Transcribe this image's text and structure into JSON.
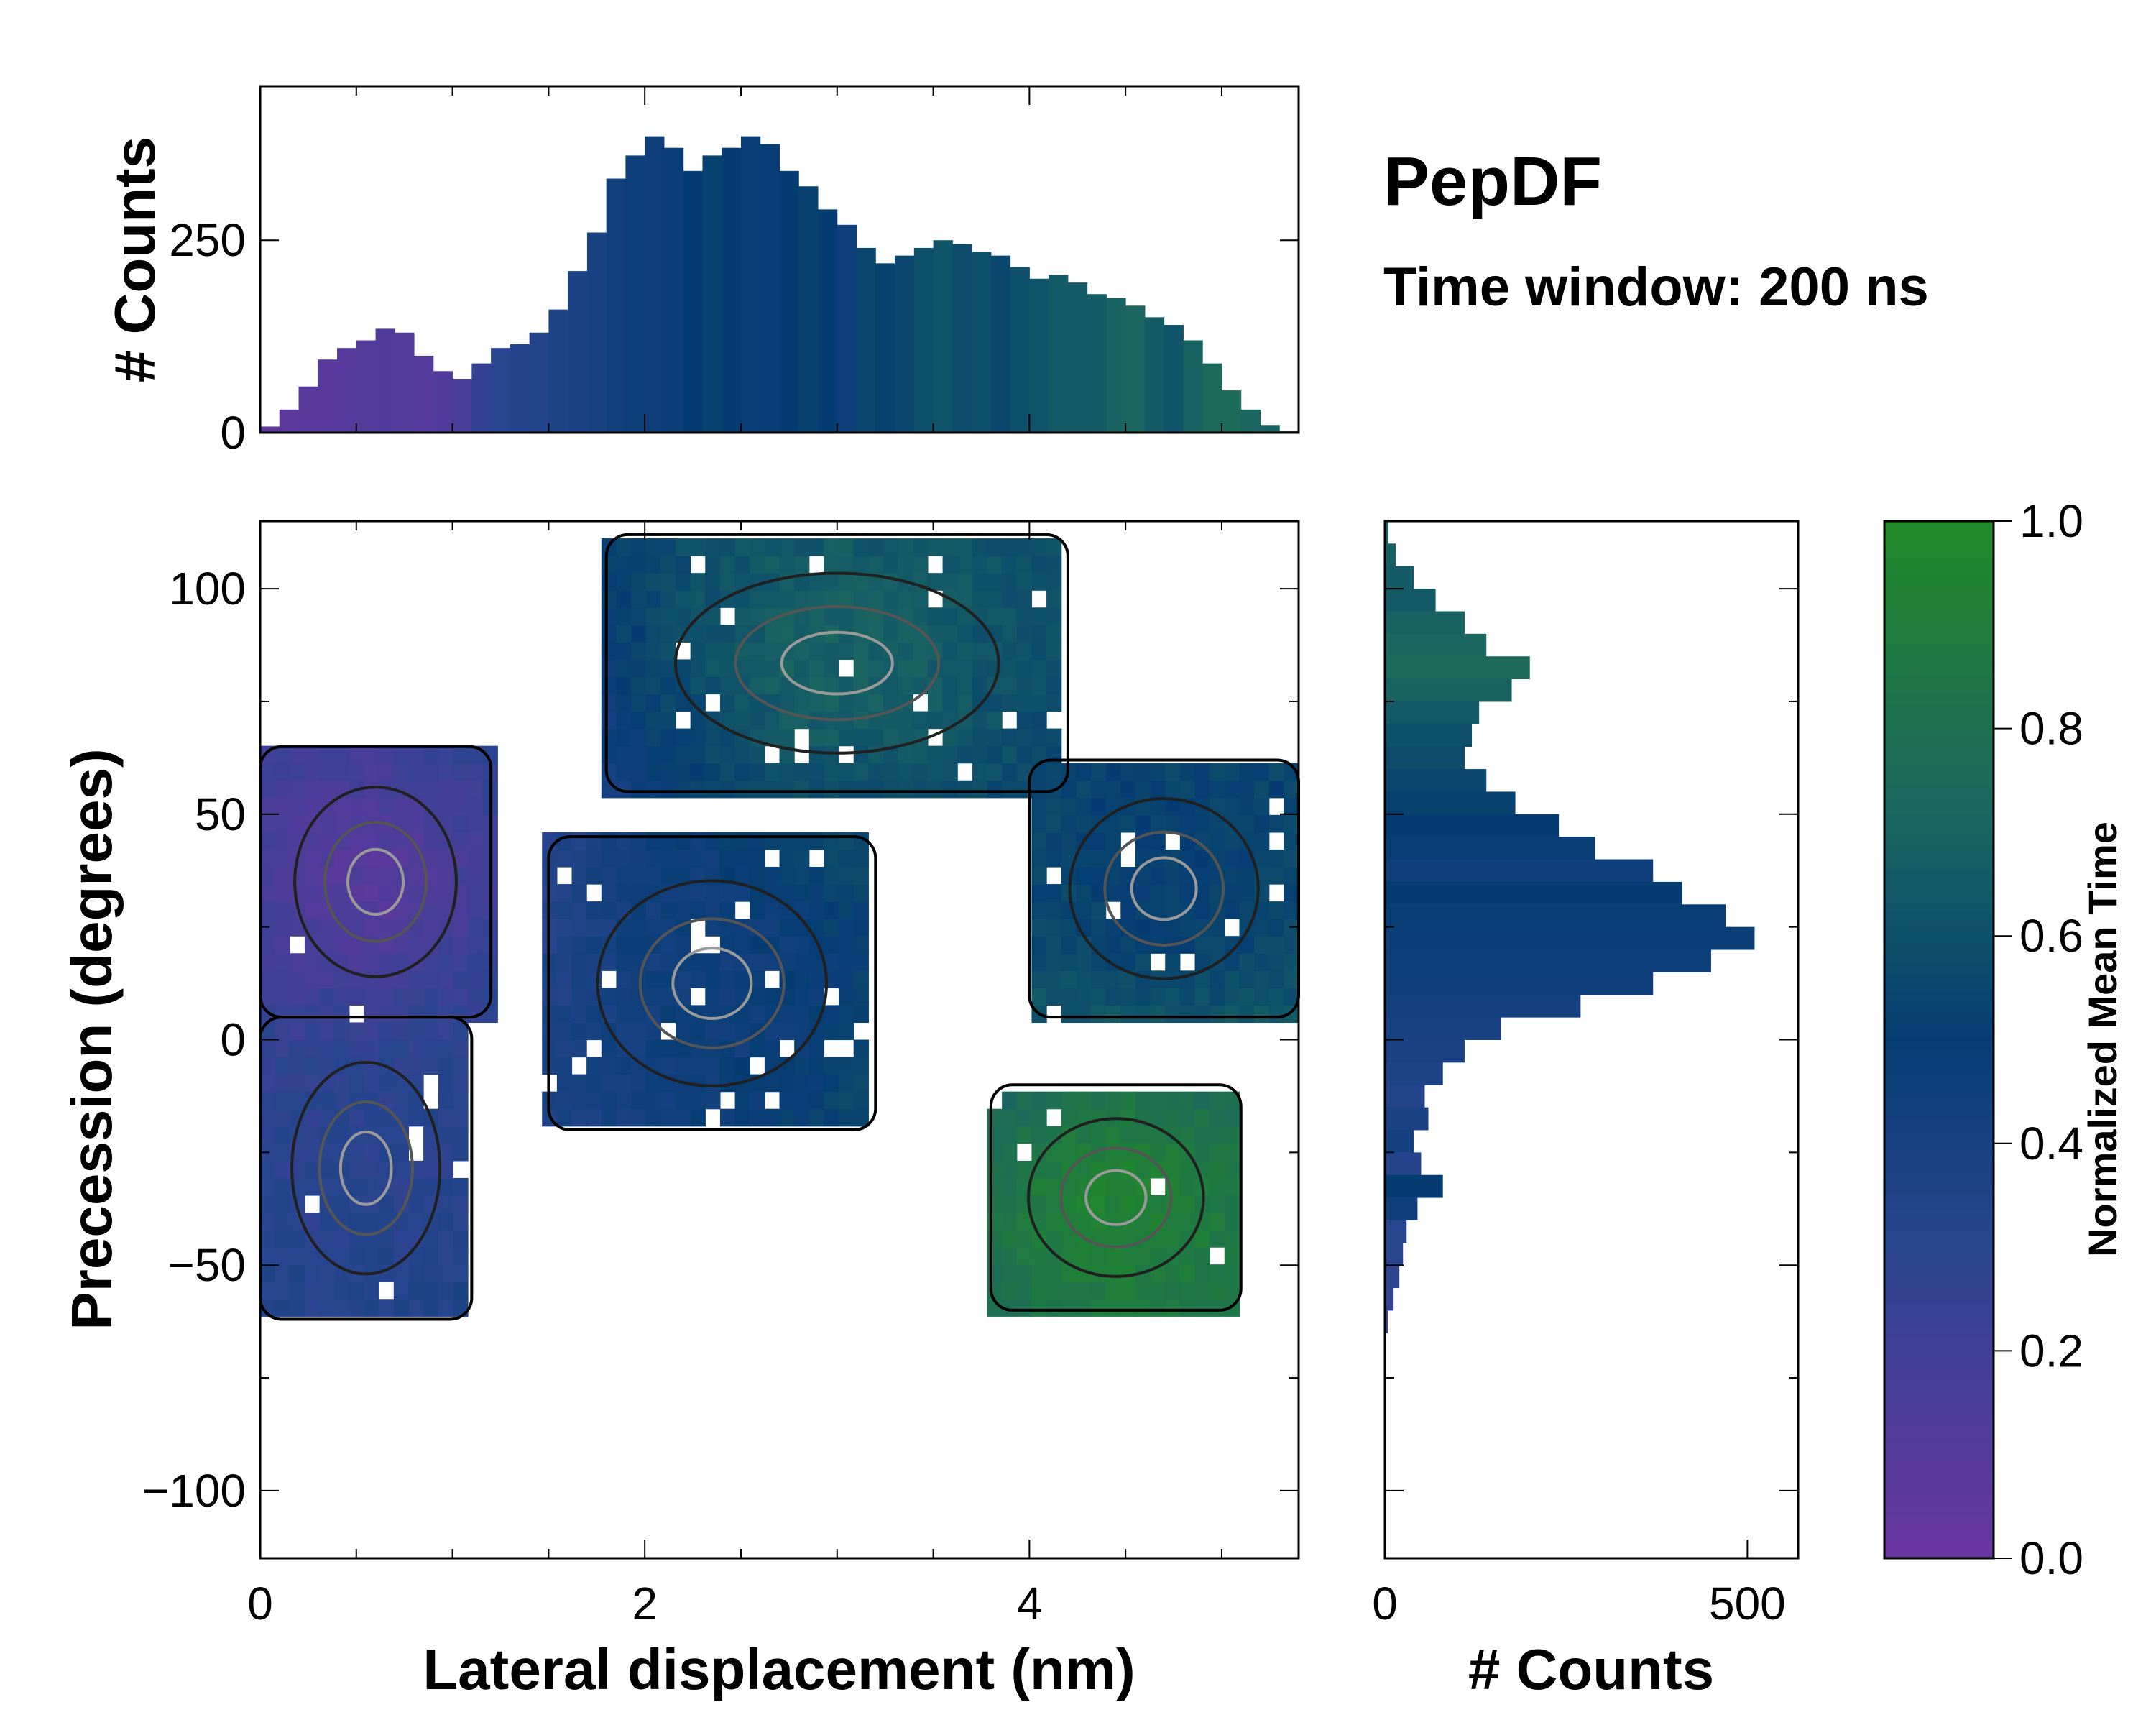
{
  "chart_data": {
    "type": "heatmap",
    "title": "PepDF",
    "subtitle": "Time window: 200 ns",
    "xlabel": "Lateral displacement (nm)",
    "ylabel": "Precession (degrees)",
    "xlim": [
      0,
      5.4
    ],
    "ylim": [
      -115,
      115
    ],
    "xticks": [
      0,
      2,
      4
    ],
    "yticks": [
      100,
      50,
      0,
      -50,
      -100
    ],
    "colorbar": {
      "label": "Normalized Mean Time",
      "range": [
        0.0,
        1.0
      ],
      "ticks": [
        "0.0",
        "0.2",
        "0.4",
        "0.6",
        "0.8",
        "1.0"
      ],
      "colors": [
        "#6a35a0",
        "#2a4590",
        "#053d72",
        "#1b6660",
        "#228a28"
      ]
    },
    "regions": [
      {
        "name": "left purple cluster",
        "x_range": [
          0.0,
          1.2
        ],
        "y_range": [
          5,
          65
        ],
        "mean_time": 0.08
      },
      {
        "name": "lower-left blue cluster",
        "x_range": [
          0.0,
          1.1
        ],
        "y_range": [
          -62,
          5
        ],
        "mean_time": 0.3
      },
      {
        "name": "central cluster",
        "x_range": [
          1.5,
          3.2
        ],
        "y_range": [
          -20,
          45
        ],
        "mean_time": 0.45
      },
      {
        "name": "upper green cluster",
        "x_range": [
          1.8,
          4.2
        ],
        "y_range": [
          55,
          112
        ],
        "mean_time": 0.7
      },
      {
        "name": "right blue cluster",
        "x_range": [
          4.0,
          5.4
        ],
        "y_range": [
          5,
          62
        ],
        "mean_time": 0.5
      },
      {
        "name": "lower-right green cluster",
        "x_range": [
          3.8,
          5.1
        ],
        "y_range": [
          -60,
          -10
        ],
        "mean_time": 0.95
      }
    ],
    "top_histogram": {
      "ylabel": "# Counts",
      "ylim": [
        0,
        450
      ],
      "yticks": [
        0,
        250
      ],
      "x": [
        0.05,
        0.15,
        0.25,
        0.35,
        0.45,
        0.55,
        0.65,
        0.75,
        0.85,
        0.95,
        1.05,
        1.15,
        1.25,
        1.35,
        1.45,
        1.55,
        1.65,
        1.75,
        1.85,
        1.95,
        2.05,
        2.15,
        2.25,
        2.35,
        2.45,
        2.55,
        2.65,
        2.75,
        2.85,
        2.95,
        3.05,
        3.15,
        3.25,
        3.35,
        3.45,
        3.55,
        3.65,
        3.75,
        3.85,
        3.95,
        4.05,
        4.15,
        4.25,
        4.35,
        4.45,
        4.55,
        4.65,
        4.75,
        4.85,
        4.95,
        5.05,
        5.15,
        5.25,
        5.35
      ],
      "counts": [
        8,
        30,
        60,
        95,
        110,
        120,
        135,
        130,
        100,
        80,
        70,
        90,
        110,
        115,
        130,
        160,
        210,
        260,
        330,
        360,
        385,
        370,
        340,
        360,
        370,
        385,
        375,
        340,
        320,
        290,
        270,
        240,
        220,
        230,
        240,
        250,
        245,
        235,
        230,
        215,
        200,
        205,
        195,
        180,
        175,
        165,
        150,
        140,
        120,
        90,
        55,
        30,
        10,
        2
      ],
      "mean_time": [
        0.05,
        0.06,
        0.08,
        0.09,
        0.1,
        0.11,
        0.12,
        0.11,
        0.1,
        0.12,
        0.16,
        0.25,
        0.3,
        0.32,
        0.34,
        0.36,
        0.38,
        0.4,
        0.44,
        0.46,
        0.45,
        0.47,
        0.5,
        0.52,
        0.5,
        0.48,
        0.49,
        0.5,
        0.52,
        0.5,
        0.45,
        0.55,
        0.52,
        0.55,
        0.6,
        0.62,
        0.58,
        0.6,
        0.55,
        0.6,
        0.62,
        0.66,
        0.65,
        0.66,
        0.7,
        0.72,
        0.66,
        0.62,
        0.7,
        0.74,
        0.75,
        0.72,
        0.7,
        0.7
      ]
    },
    "right_histogram": {
      "xlabel": "# Counts",
      "xlim": [
        0,
        570
      ],
      "xticks": [
        0,
        500
      ],
      "y": [
        112.5,
        107.5,
        102.5,
        97.5,
        92.5,
        87.5,
        82.5,
        77.5,
        72.5,
        67.5,
        62.5,
        57.5,
        52.5,
        47.5,
        42.5,
        37.5,
        32.5,
        27.5,
        22.5,
        17.5,
        12.5,
        7.5,
        2.5,
        -2.5,
        -7.5,
        -12.5,
        -17.5,
        -22.5,
        -27.5,
        -32.5,
        -37.5,
        -42.5,
        -47.5,
        -52.5,
        -57.5,
        -62.5
      ],
      "counts": [
        5,
        15,
        40,
        70,
        110,
        140,
        200,
        175,
        130,
        120,
        110,
        140,
        180,
        240,
        290,
        370,
        410,
        470,
        510,
        450,
        370,
        270,
        160,
        110,
        80,
        55,
        60,
        40,
        50,
        80,
        45,
        30,
        25,
        20,
        12,
        4
      ],
      "mean_time": [
        0.7,
        0.68,
        0.66,
        0.65,
        0.7,
        0.72,
        0.74,
        0.7,
        0.65,
        0.6,
        0.58,
        0.55,
        0.52,
        0.5,
        0.48,
        0.45,
        0.5,
        0.48,
        0.47,
        0.46,
        0.45,
        0.42,
        0.4,
        0.38,
        0.36,
        0.34,
        0.38,
        0.42,
        0.32,
        0.5,
        0.45,
        0.3,
        0.3,
        0.28,
        0.26,
        0.25
      ]
    }
  }
}
